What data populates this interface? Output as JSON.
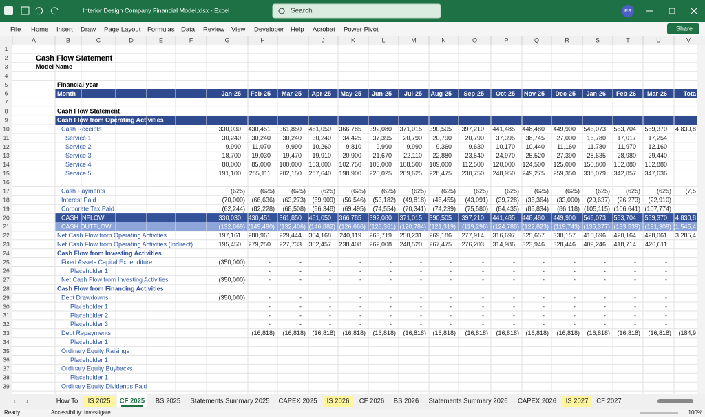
{
  "window": {
    "title": "Interior Design Company Financial Model.xlsx - Excel",
    "search": "Search",
    "user": "RS"
  },
  "ribbon": [
    "File",
    "Home",
    "Insert",
    "Draw",
    "Page Layout",
    "Formulas",
    "Data",
    "Review",
    "View",
    "Developer",
    "Help",
    "Acrobat",
    "Power Pivot"
  ],
  "share": "Share",
  "columns": [
    "A",
    "B",
    "C",
    "D",
    "E",
    "F",
    "G",
    "H",
    "I",
    "J",
    "K",
    "L",
    "M",
    "N",
    "O",
    "P",
    "Q",
    "R",
    "S",
    "T",
    "U",
    "V"
  ],
  "rows": [
    {
      "n": 1
    },
    {
      "n": 2,
      "label": "Cash Flow Statement",
      "level": 0,
      "style": "title"
    },
    {
      "n": 3,
      "label": "Model Name",
      "level": 0,
      "style": "bold"
    },
    {
      "n": 4
    },
    {
      "n": 5,
      "label": "Financial year",
      "level": 1,
      "style": "bold"
    },
    {
      "n": 6,
      "label": "Month",
      "level": 1,
      "style": "header",
      "values": [
        "Jan-25",
        "Feb-25",
        "Mar-25",
        "Apr-25",
        "May-25",
        "Jun-25",
        "Jul-25",
        "Aug-25",
        "Sep-25",
        "Oct-25",
        "Nov-25",
        "Dec-25",
        "Jan-26",
        "Feb-26",
        "Mar-26",
        "Tota"
      ]
    },
    {
      "n": 7
    },
    {
      "n": 8,
      "label": "Cash Flow Statement",
      "level": 1,
      "style": "bold"
    },
    {
      "n": 9,
      "label": "Cash Flow from Operating Activities",
      "level": 1,
      "style": "header"
    },
    {
      "n": 10,
      "label": "Cash Receipts",
      "level": 2,
      "values": [
        "330,030",
        "430,451",
        "361,850",
        "451,050",
        "366,785",
        "392,080",
        "371,015",
        "390,505",
        "397,210",
        "441,485",
        "448,480",
        "449,900",
        "546,073",
        "553,704",
        "559,370",
        "4,830,8"
      ]
    },
    {
      "n": 11,
      "label": "Service 1",
      "level": 3,
      "values": [
        "30,240",
        "30,240",
        "30,240",
        "30,240",
        "34,425",
        "37,395",
        "20,790",
        "20,790",
        "20,790",
        "37,395",
        "38,745",
        "27,000",
        "16,780",
        "17,017",
        "17,254",
        null
      ]
    },
    {
      "n": 12,
      "label": "Service 2",
      "level": 3,
      "values": [
        "9,990",
        "11,070",
        "9,990",
        "10,260",
        "9,810",
        "9,990",
        "9,990",
        "9,360",
        "9,630",
        "10,170",
        "10,440",
        "11,160",
        "11,780",
        "11,970",
        "12,160",
        null
      ]
    },
    {
      "n": 13,
      "label": "Service 3",
      "level": 3,
      "values": [
        "18,700",
        "19,030",
        "19,470",
        "19,910",
        "20,900",
        "21,670",
        "22,110",
        "22,880",
        "23,540",
        "24,970",
        "25,520",
        "27,390",
        "28,635",
        "28,980",
        "29,440",
        null
      ]
    },
    {
      "n": 14,
      "label": "Service 4",
      "level": 3,
      "values": [
        "80,000",
        "85,000",
        "100,000",
        "103,000",
        "102,750",
        "103,000",
        "108,500",
        "109,000",
        "112,500",
        "120,000",
        "124,500",
        "125,000",
        "150,800",
        "152,880",
        "152,880",
        null
      ]
    },
    {
      "n": 15,
      "label": "Service 5",
      "level": 3,
      "values": [
        "191,100",
        "285,111",
        "202,150",
        "287,640",
        "198,900",
        "220,025",
        "209,625",
        "228,475",
        "230,750",
        "248,950",
        "249,275",
        "259,350",
        "338,079",
        "342,857",
        "347,636",
        null
      ]
    },
    {
      "n": 16
    },
    {
      "n": 17,
      "label": "Cash Payments",
      "level": 2,
      "values": [
        "(625)",
        "(625)",
        "(625)",
        "(625)",
        "(625)",
        "(625)",
        "(625)",
        "(625)",
        "(625)",
        "(625)",
        "(625)",
        "(625)",
        "(625)",
        "(625)",
        "(625)",
        "(7,5"
      ]
    },
    {
      "n": 18,
      "label": "Interest Paid",
      "level": 2,
      "values": [
        "(70,000)",
        "(66,636)",
        "(63,273)",
        "(59,909)",
        "(56,546)",
        "(53,182)",
        "(49,818)",
        "(46,455)",
        "(43,091)",
        "(39,728)",
        "(36,364)",
        "(33,000)",
        "(29,637)",
        "(26,273)",
        "(22,910)",
        null
      ]
    },
    {
      "n": 19,
      "label": "Corporate Tax Paid",
      "level": 2,
      "values": [
        "(62,244)",
        "(82,228)",
        "(68,508)",
        "(86,348)",
        "(69,495)",
        "(74,554)",
        "(70,341)",
        "(74,239)",
        "(75,580)",
        "(84,435)",
        "(85,834)",
        "(86,118)",
        "(105,115)",
        "(106,641)",
        "(107,774)",
        null
      ]
    },
    {
      "n": 20,
      "label": "CASH INFLOW",
      "level": 2,
      "style": "inflow",
      "values": [
        "330,030",
        "430,451",
        "361,850",
        "451,050",
        "366,785",
        "392,080",
        "371,015",
        "390,505",
        "397,210",
        "441,485",
        "448,480",
        "449,900",
        "546,073",
        "553,704",
        "559,370",
        "4,830,8"
      ]
    },
    {
      "n": 21,
      "label": "CASH OUTFLOW",
      "level": 2,
      "style": "outflow",
      "values": [
        "(132,869)",
        "(149,490)",
        "(132,406)",
        "(146,882)",
        "(126,666)",
        "(128,361)",
        "(120,784)",
        "(121,319)",
        "(119,296)",
        "(124,788)",
        "(122,823)",
        "(119,743)",
        "(135,377)",
        "(133,539)",
        "(131,309)",
        "(1,545,4"
      ]
    },
    {
      "n": 22,
      "label": "Net Cash Flow from Operating Activities",
      "level": 1,
      "values": [
        "197,161",
        "280,961",
        "229,444",
        "304,168",
        "240,119",
        "263,719",
        "250,231",
        "269,186",
        "277,914",
        "316,697",
        "325,657",
        "330,157",
        "410,696",
        "420,164",
        "428,061",
        "3,285,4"
      ]
    },
    {
      "n": 23,
      "label": "Net Cash Flow from Operating Activities (Indirect)",
      "level": 1,
      "values": [
        "195,450",
        "279,250",
        "227,733",
        "302,457",
        "238,408",
        "262,008",
        "248,520",
        "267,475",
        "276,203",
        "314,986",
        "323,946",
        "328,446",
        "409,246",
        "418,714",
        "426,611",
        null
      ]
    },
    {
      "n": 24,
      "label": "Cash Flow from Investing Activities",
      "level": 1,
      "style": "section"
    },
    {
      "n": 25,
      "label": "Fixed Assets Capital Expenditure",
      "level": 2,
      "values": [
        "(350,000)",
        "-",
        "-",
        "-",
        "-",
        "-",
        "-",
        "-",
        "-",
        "-",
        "-",
        "-",
        "-",
        "-",
        "-",
        null
      ]
    },
    {
      "n": 26,
      "label": "Placeholder 1",
      "level": 4,
      "values": [
        null,
        "-",
        "-",
        "-",
        "-",
        "-",
        "-",
        "-",
        "-",
        "-",
        "-",
        "-",
        "-",
        "-",
        "-",
        null
      ]
    },
    {
      "n": 27,
      "label": "Net Cash Flow from Investing Activities",
      "level": 2,
      "values": [
        "(350,000)",
        "-",
        "-",
        "-",
        "-",
        "-",
        "-",
        "-",
        "-",
        "-",
        "-",
        "-",
        "-",
        "-",
        "-",
        null
      ]
    },
    {
      "n": 28,
      "label": "Cash Flow from Financing Activities",
      "level": 1,
      "style": "section"
    },
    {
      "n": 29,
      "label": "Debt Drawdowns",
      "level": 2,
      "values": [
        "(350,000)",
        "-",
        "-",
        "-",
        "-",
        "-",
        "-",
        "-",
        "-",
        "-",
        "-",
        "-",
        "-",
        "-",
        "-",
        null
      ]
    },
    {
      "n": 30,
      "label": "Placeholder 1",
      "level": 4,
      "values": [
        null,
        "-",
        "-",
        "-",
        "-",
        "-",
        "-",
        "-",
        "-",
        "-",
        "-",
        "-",
        "-",
        "-",
        "-",
        null
      ]
    },
    {
      "n": 31,
      "label": "Placeholder 2",
      "level": 4,
      "values": [
        null,
        "-",
        "-",
        "-",
        "-",
        "-",
        "-",
        "-",
        "-",
        "-",
        "-",
        "-",
        "-",
        "-",
        "-",
        null
      ]
    },
    {
      "n": 32,
      "label": "Placeholder 3",
      "level": 4,
      "values": [
        null,
        "-",
        "-",
        "-",
        "-",
        "-",
        "-",
        "-",
        "-",
        "-",
        "-",
        "-",
        "-",
        "-",
        "-",
        null
      ]
    },
    {
      "n": 33,
      "label": "Debt Repayments",
      "level": 2,
      "values": [
        null,
        "(16,818)",
        "(16,818)",
        "(16,818)",
        "(16,818)",
        "(16,818)",
        "(16,818)",
        "(16,818)",
        "(16,818)",
        "(16,818)",
        "(16,818)",
        "(16,818)",
        "(16,818)",
        "(16,818)",
        "(16,818)",
        "(184,9"
      ]
    },
    {
      "n": 34,
      "label": "Placeholder 1",
      "level": 4
    },
    {
      "n": 35,
      "label": "Ordinary Equity Raisings",
      "level": 2
    },
    {
      "n": 36,
      "label": "Placeholder 1",
      "level": 4
    },
    {
      "n": 37,
      "label": "Ordinary Equity Buybacks",
      "level": 2
    },
    {
      "n": 38,
      "label": "Placeholder 1",
      "level": 4
    },
    {
      "n": 39,
      "label": "Ordinary Equity Dividends Paid",
      "level": 2
    }
  ],
  "tabs": [
    {
      "name": "How To"
    },
    {
      "name": "IS 2025",
      "color": "#fff59d"
    },
    {
      "name": "CF 2025",
      "active": true
    },
    {
      "name": "BS 2025"
    },
    {
      "name": "Statements Summary 2025"
    },
    {
      "name": "CAPEX 2025"
    },
    {
      "name": "IS 2026",
      "color": "#fff59d"
    },
    {
      "name": "CF 2026"
    },
    {
      "name": "BS 2026"
    },
    {
      "name": "Statements Summary 2026"
    },
    {
      "name": "CAPEX 2026"
    },
    {
      "name": "IS 2027",
      "color": "#fff59d"
    },
    {
      "name": "CF 2027"
    }
  ],
  "status": {
    "mode": "Ready",
    "accessibility": "Accessibility: Investigate",
    "zoom": "100%"
  }
}
